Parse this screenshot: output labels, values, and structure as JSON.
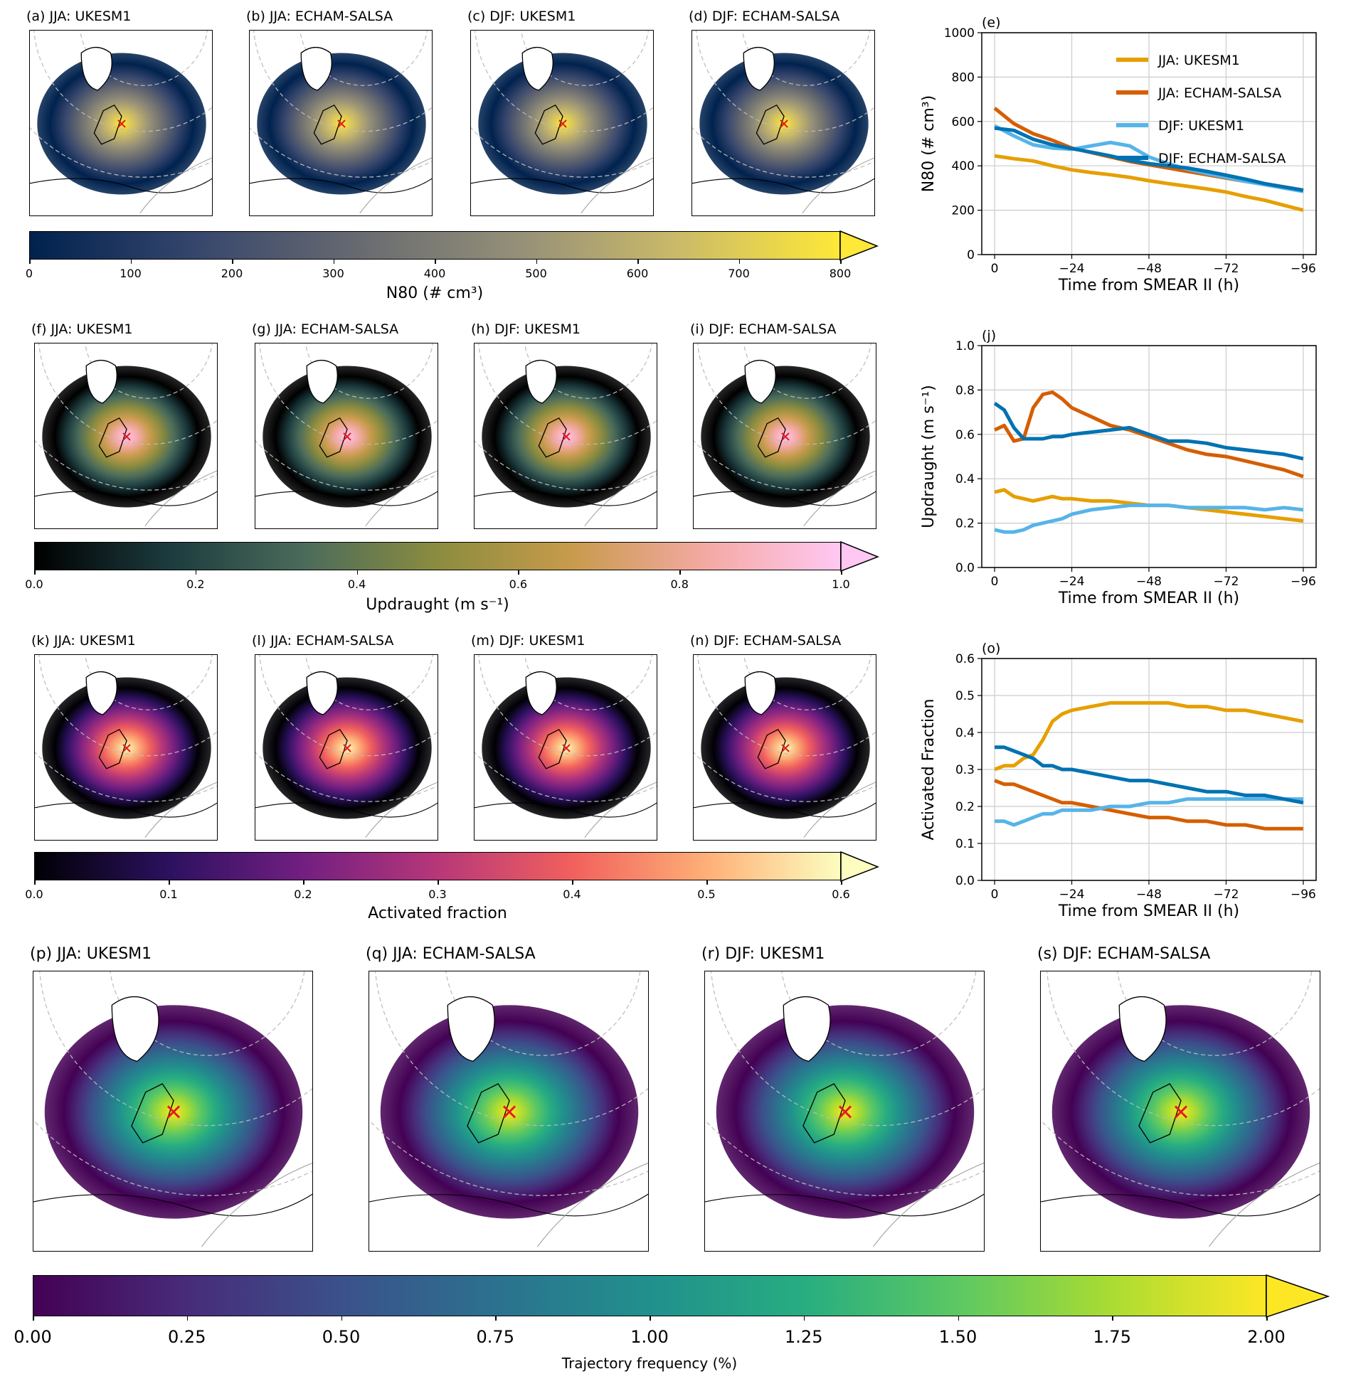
{
  "maps": {
    "row1": [
      "(a) JJA: UKESM1",
      "(b) JJA: ECHAM-SALSA",
      "(c) DJF: UKESM1",
      "(d) DJF: ECHAM-SALSA"
    ],
    "row2": [
      "(f) JJA: UKESM1",
      "(g) JJA: ECHAM-SALSA",
      "(h) DJF: UKESM1",
      "(i) DJF: ECHAM-SALSA"
    ],
    "row3": [
      "(k) JJA: UKESM1",
      "(l) JJA: ECHAM-SALSA",
      "(m) DJF: UKESM1",
      "(n) DJF: ECHAM-SALSA"
    ],
    "row4": [
      "(p) JJA: UKESM1",
      "(q) JJA: ECHAM-SALSA",
      "(r) DJF: UKESM1",
      "(s) DJF: ECHAM-SALSA"
    ]
  },
  "colorbars": {
    "n80": {
      "label": "N80 (# cm³)",
      "ticks": [
        "0",
        "100",
        "200",
        "300",
        "400",
        "500",
        "600",
        "700",
        "800"
      ],
      "colors": [
        "#00224e",
        "#35456c",
        "#666970",
        "#948f78",
        "#cbba69",
        "#fee838"
      ]
    },
    "updraught": {
      "label": "Updraught (m s⁻¹)",
      "ticks": [
        "0.0",
        "0.2",
        "0.4",
        "0.6",
        "0.8",
        "1.0"
      ],
      "colors": [
        "#000000",
        "#1c3b3e",
        "#4a6b5b",
        "#8b8c3f",
        "#c89b4c",
        "#f4a9a3",
        "#ffc8f2"
      ]
    },
    "activated": {
      "label": "Activated fraction",
      "ticks": [
        "0.0",
        "0.1",
        "0.2",
        "0.3",
        "0.4",
        "0.5",
        "0.6"
      ],
      "colors": [
        "#000004",
        "#2c115f",
        "#721f81",
        "#b73779",
        "#f1605d",
        "#feaf77",
        "#fcfdbf"
      ]
    },
    "trajectory": {
      "label": "Trajectory frequency (%)",
      "ticks": [
        "0.00",
        "0.25",
        "0.50",
        "0.75",
        "1.00",
        "1.25",
        "1.50",
        "1.75",
        "2.00"
      ],
      "colors": [
        "#440154",
        "#472c7a",
        "#3b518b",
        "#2c718e",
        "#21908d",
        "#27ad81",
        "#5cc863",
        "#aadc32",
        "#fde725"
      ]
    }
  },
  "chart_data": [
    {
      "id": "e",
      "type": "line",
      "title": "(e)",
      "xlabel": "Time from SMEAR II (h)",
      "ylabel": "N80 (# cm³)",
      "ylim": [
        0,
        1000
      ],
      "yticks": [
        "0",
        "200",
        "400",
        "600",
        "800",
        "1000"
      ],
      "xticks": [
        "0",
        "−24",
        "−48",
        "−72",
        "−96"
      ],
      "x": [
        0,
        -6,
        -12,
        -18,
        -24,
        -30,
        -36,
        -42,
        -48,
        -54,
        -60,
        -66,
        -72,
        -78,
        -84,
        -90,
        -96
      ],
      "series": [
        {
          "name": "JJA: UKESM1",
          "color": "#e69f00",
          "values": [
            445,
            432,
            422,
            400,
            382,
            370,
            360,
            348,
            333,
            320,
            308,
            296,
            282,
            262,
            245,
            222,
            200
          ]
        },
        {
          "name": "JJA: ECHAM-SALSA",
          "color": "#d55e00",
          "values": [
            660,
            590,
            545,
            515,
            480,
            460,
            440,
            420,
            405,
            390,
            375,
            360,
            345,
            330,
            318,
            305,
            290
          ]
        },
        {
          "name": "DJF: UKESM1",
          "color": "#56b4e9",
          "values": [
            580,
            535,
            495,
            480,
            475,
            490,
            505,
            490,
            440,
            410,
            385,
            365,
            348,
            330,
            315,
            300,
            285
          ]
        },
        {
          "name": "DJF: ECHAM-SALSA",
          "color": "#0072b2",
          "values": [
            570,
            560,
            520,
            495,
            478,
            462,
            445,
            425,
            410,
            400,
            390,
            375,
            358,
            340,
            320,
            305,
            290
          ]
        }
      ],
      "legend": "top-right"
    },
    {
      "id": "j",
      "type": "line",
      "title": "(j)",
      "xlabel": "Time from SMEAR II (h)",
      "ylabel": "Updraught (m s⁻¹)",
      "ylim": [
        0,
        1
      ],
      "yticks": [
        "0.0",
        "0.2",
        "0.4",
        "0.6",
        "0.8",
        "1.0"
      ],
      "xticks": [
        "0",
        "−24",
        "−48",
        "−72",
        "−96"
      ],
      "x": [
        0,
        -3,
        -6,
        -9,
        -12,
        -15,
        -18,
        -21,
        -24,
        -30,
        -36,
        -42,
        -48,
        -54,
        -60,
        -66,
        -72,
        -78,
        -84,
        -90,
        -96
      ],
      "series": [
        {
          "name": "JJA: UKESM1",
          "color": "#e69f00",
          "values": [
            0.34,
            0.35,
            0.32,
            0.31,
            0.3,
            0.31,
            0.32,
            0.31,
            0.31,
            0.3,
            0.3,
            0.29,
            0.28,
            0.28,
            0.27,
            0.26,
            0.25,
            0.24,
            0.23,
            0.22,
            0.21
          ]
        },
        {
          "name": "JJA: ECHAM-SALSA",
          "color": "#d55e00",
          "values": [
            0.62,
            0.64,
            0.57,
            0.58,
            0.72,
            0.78,
            0.79,
            0.76,
            0.72,
            0.68,
            0.64,
            0.62,
            0.59,
            0.56,
            0.53,
            0.51,
            0.5,
            0.48,
            0.46,
            0.44,
            0.41
          ]
        },
        {
          "name": "DJF: UKESM1",
          "color": "#56b4e9",
          "values": [
            0.17,
            0.16,
            0.16,
            0.17,
            0.19,
            0.2,
            0.21,
            0.22,
            0.24,
            0.26,
            0.27,
            0.28,
            0.28,
            0.28,
            0.27,
            0.27,
            0.27,
            0.27,
            0.26,
            0.27,
            0.26
          ]
        },
        {
          "name": "DJF: ECHAM-SALSA",
          "color": "#0072b2",
          "values": [
            0.74,
            0.71,
            0.63,
            0.58,
            0.58,
            0.58,
            0.59,
            0.59,
            0.6,
            0.61,
            0.62,
            0.63,
            0.6,
            0.57,
            0.57,
            0.56,
            0.54,
            0.53,
            0.52,
            0.51,
            0.49
          ]
        }
      ]
    },
    {
      "id": "o",
      "type": "line",
      "title": "(o)",
      "xlabel": "Time from SMEAR II (h)",
      "ylabel": "Activated Fraction",
      "ylim": [
        0,
        0.6
      ],
      "yticks": [
        "0.0",
        "0.1",
        "0.2",
        "0.3",
        "0.4",
        "0.5",
        "0.6"
      ],
      "xticks": [
        "0",
        "−24",
        "−48",
        "−72",
        "−96"
      ],
      "x": [
        0,
        -3,
        -6,
        -9,
        -12,
        -15,
        -18,
        -21,
        -24,
        -30,
        -36,
        -42,
        -48,
        -54,
        -60,
        -66,
        -72,
        -78,
        -84,
        -90,
        -96
      ],
      "series": [
        {
          "name": "JJA: UKESM1",
          "color": "#e69f00",
          "values": [
            0.3,
            0.31,
            0.31,
            0.33,
            0.34,
            0.38,
            0.43,
            0.45,
            0.46,
            0.47,
            0.48,
            0.48,
            0.48,
            0.48,
            0.47,
            0.47,
            0.46,
            0.46,
            0.45,
            0.44,
            0.43
          ]
        },
        {
          "name": "JJA: ECHAM-SALSA",
          "color": "#d55e00",
          "values": [
            0.27,
            0.26,
            0.26,
            0.25,
            0.24,
            0.23,
            0.22,
            0.21,
            0.21,
            0.2,
            0.19,
            0.18,
            0.17,
            0.17,
            0.16,
            0.16,
            0.15,
            0.15,
            0.14,
            0.14,
            0.14
          ]
        },
        {
          "name": "DJF: UKESM1",
          "color": "#56b4e9",
          "values": [
            0.16,
            0.16,
            0.15,
            0.16,
            0.17,
            0.18,
            0.18,
            0.19,
            0.19,
            0.19,
            0.2,
            0.2,
            0.21,
            0.21,
            0.22,
            0.22,
            0.22,
            0.22,
            0.22,
            0.22,
            0.22
          ]
        },
        {
          "name": "DJF: ECHAM-SALSA",
          "color": "#0072b2",
          "values": [
            0.36,
            0.36,
            0.35,
            0.34,
            0.33,
            0.31,
            0.31,
            0.3,
            0.3,
            0.29,
            0.28,
            0.27,
            0.27,
            0.26,
            0.25,
            0.24,
            0.24,
            0.23,
            0.23,
            0.22,
            0.21
          ]
        }
      ]
    }
  ]
}
